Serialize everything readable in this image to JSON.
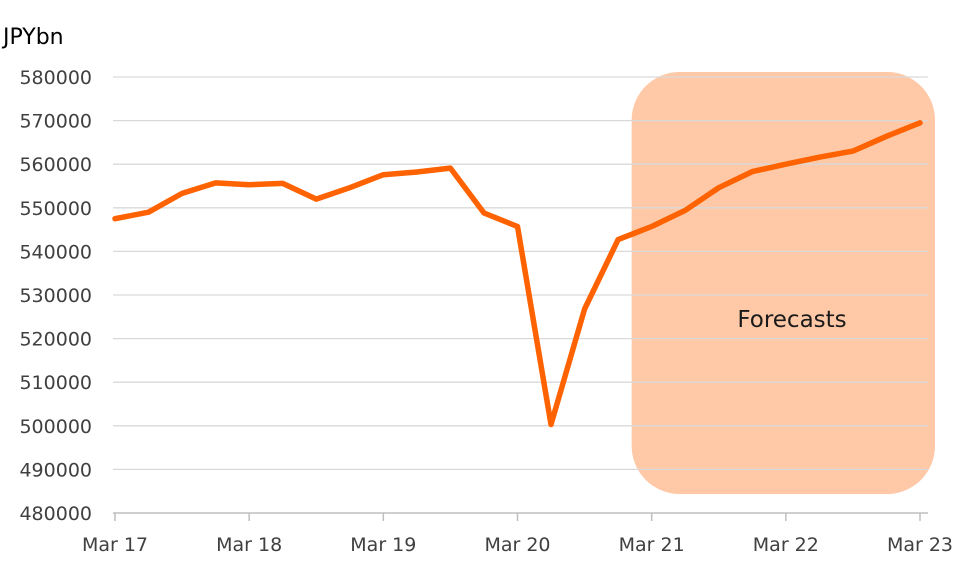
{
  "chart_data": {
    "type": "line",
    "ylabel": "JPYbn",
    "ylim": [
      480000,
      580000
    ],
    "yticks": [
      "580000",
      "570000",
      "560000",
      "550000",
      "540000",
      "530000",
      "520000",
      "510000",
      "500000",
      "490000",
      "480000"
    ],
    "xticks": [
      "Mar 17",
      "Mar 18",
      "Mar 19",
      "Mar 20",
      "Mar 21",
      "Mar 22",
      "Mar 23"
    ],
    "grid": "horizontal",
    "series": [
      {
        "color": "#ff6200",
        "x": [
          "Mar 17",
          "Jun 17",
          "Sep 17",
          "Dec 17",
          "Mar 18",
          "Jun 18",
          "Sep 18",
          "Dec 18",
          "Mar 19",
          "Jun 19",
          "Sep 19",
          "Dec 19",
          "Mar 20",
          "Jun 20",
          "Sep 20",
          "Dec 20",
          "Mar 21",
          "Jun 21",
          "Sep 21",
          "Dec 21",
          "Mar 22",
          "Jun 22",
          "Sep 22",
          "Dec 22",
          "Mar 23"
        ],
        "values": [
          547500,
          549000,
          553300,
          555700,
          555300,
          555600,
          552000,
          554600,
          557600,
          558200,
          559100,
          548800,
          545700,
          500300,
          526800,
          542700,
          545700,
          549400,
          554600,
          558300,
          560000,
          561600,
          563000,
          566400,
          569500
        ]
      }
    ],
    "annotation": {
      "text": "Forecasts",
      "from": "Mar 21",
      "to": "Mar 23",
      "color": "#ffc8a6"
    }
  }
}
